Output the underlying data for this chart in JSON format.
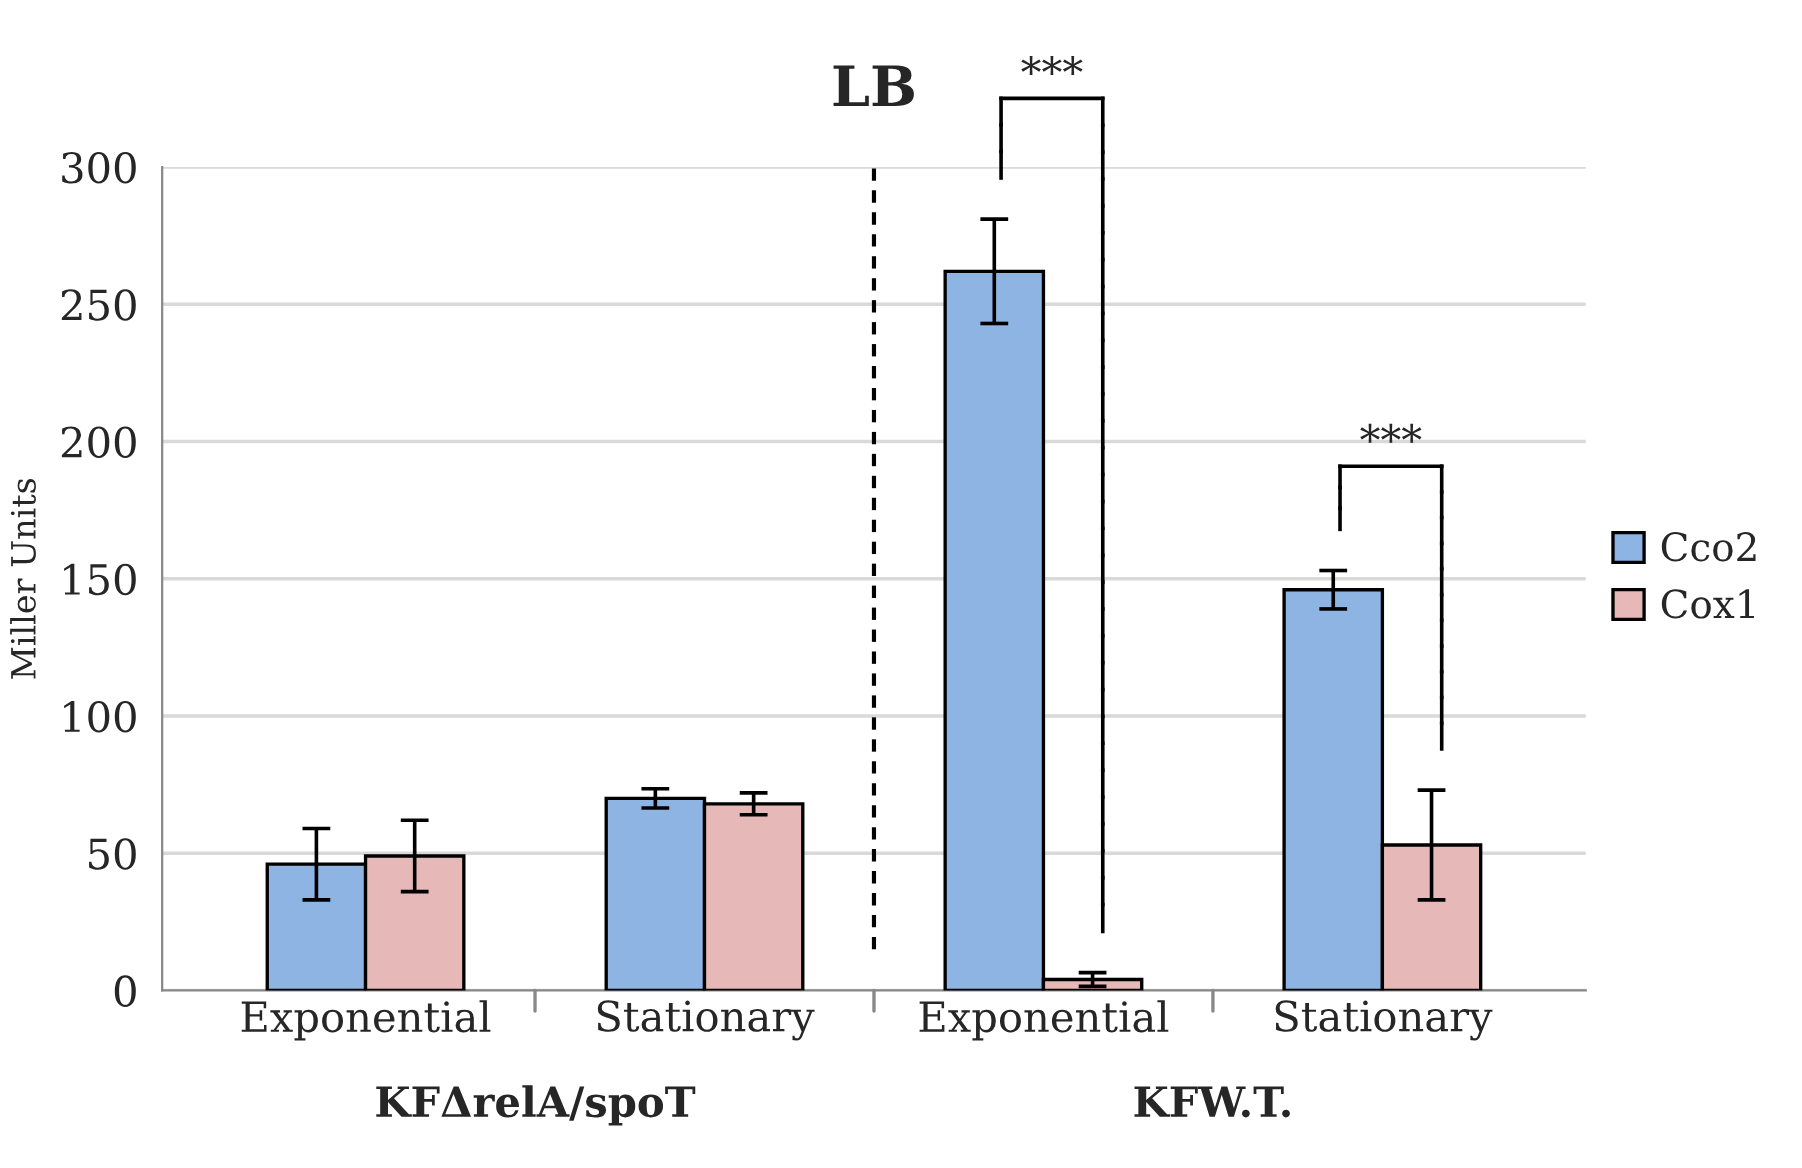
{
  "chart_data": {
    "type": "bar",
    "title": "LB",
    "ylabel": "Miller Units",
    "categories": [
      "Exponential",
      "Stationary",
      "Exponential",
      "Stationary"
    ],
    "series": [
      {
        "name": "Cco2",
        "color": "#8eb4e3",
        "values": [
          46,
          70,
          262,
          146
        ],
        "errors": [
          13,
          3.5,
          19,
          7
        ]
      },
      {
        "name": "Cox1",
        "color": "#e6b9b8",
        "values": [
          49,
          68,
          4,
          53
        ],
        "errors": [
          13,
          4,
          2.5,
          20
        ]
      }
    ],
    "ylim": [
      0,
      300
    ],
    "yticks": [
      0,
      50,
      100,
      150,
      200,
      250,
      300
    ],
    "grid": "y",
    "legend": "right",
    "annotations": [
      "***",
      "***",
      "KFΔrelA/spoT",
      "KFW.T."
    ]
  }
}
